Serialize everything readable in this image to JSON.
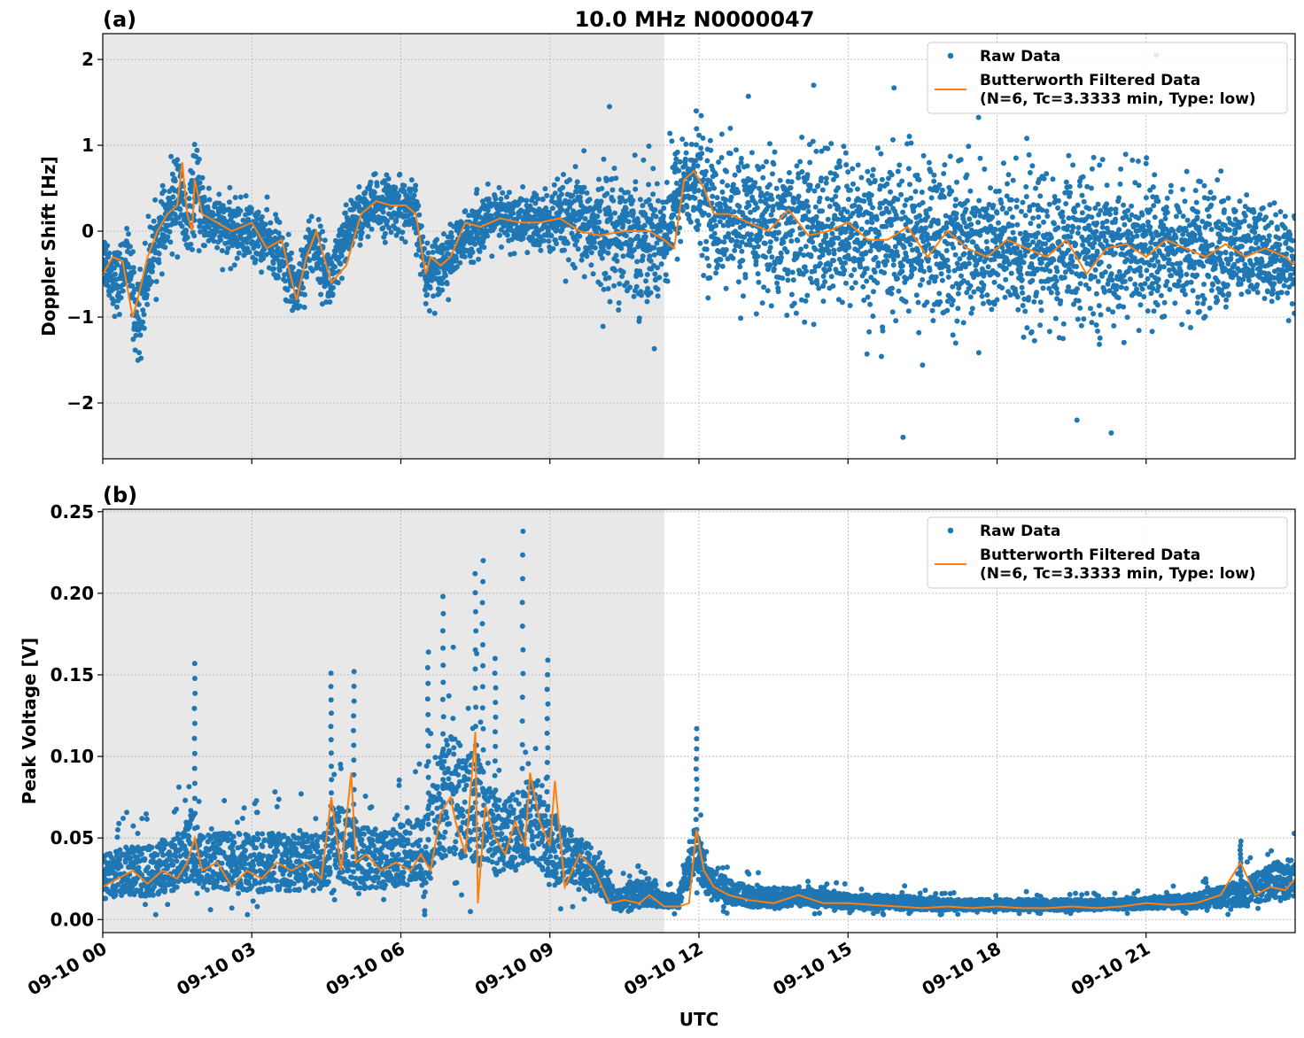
{
  "chart_data": [
    {
      "type": "scatter",
      "panel_label": "(a)",
      "title": "10.0 MHz N0000047",
      "ylabel": "Doppler Shift [Hz]",
      "xlabel": "",
      "xlim_hours": [
        0,
        24
      ],
      "ylim": [
        -2.65,
        2.3
      ],
      "yticks": [
        -2,
        -1,
        0,
        1,
        2
      ],
      "ytick_labels": [
        "−2",
        "−1",
        "0",
        "1",
        "2"
      ],
      "grid": true,
      "legend_position": "top-right",
      "shaded_region_hours": [
        0,
        11.3
      ],
      "series": [
        {
          "name": "Raw Data",
          "style": "points",
          "color": "#1f77b4",
          "x_hours": [
            0,
            0.3,
            0.5,
            0.7,
            1.0,
            1.3,
            1.5,
            1.7,
            1.85,
            2.0,
            2.5,
            3.0,
            3.5,
            3.9,
            4.2,
            4.6,
            5.0,
            5.5,
            6.0,
            6.3,
            6.5,
            6.7,
            7.0,
            7.5,
            8.0,
            8.5,
            9.0,
            9.5,
            10.0,
            10.5,
            11.0,
            11.3,
            11.7,
            12.0,
            12.3,
            13.0,
            14.0,
            15.0,
            16.0,
            17.0,
            18.0,
            19.0,
            20.0,
            21.0,
            22.0,
            23.0,
            24.0
          ],
          "y_center": [
            -0.3,
            -0.6,
            -0.3,
            -1.1,
            -0.2,
            0.1,
            0.5,
            0.0,
            0.5,
            0.2,
            0.0,
            0.0,
            -0.2,
            -0.7,
            -0.1,
            -0.6,
            0.1,
            0.3,
            0.3,
            0.2,
            -0.5,
            -0.4,
            -0.3,
            0.05,
            0.15,
            0.1,
            0.1,
            0.1,
            0.0,
            0.0,
            -0.1,
            0.0,
            0.6,
            0.5,
            0.2,
            0.1,
            0.0,
            0.0,
            -0.1,
            -0.1,
            -0.2,
            -0.25,
            -0.2,
            -0.2,
            -0.2,
            -0.25,
            -0.3
          ],
          "y_spread": [
            0.3,
            0.35,
            0.3,
            0.5,
            0.35,
            0.35,
            0.5,
            0.35,
            0.45,
            0.35,
            0.3,
            0.3,
            0.3,
            0.35,
            0.3,
            0.35,
            0.3,
            0.3,
            0.3,
            0.3,
            0.3,
            0.3,
            0.3,
            0.3,
            0.3,
            0.3,
            0.35,
            0.45,
            0.6,
            0.65,
            0.7,
            0.7,
            0.5,
            0.6,
            0.7,
            0.75,
            0.8,
            0.8,
            0.85,
            0.85,
            0.8,
            0.8,
            0.75,
            0.7,
            0.65,
            0.55,
            0.45
          ],
          "notable_points": [
            [
              10.2,
              1.45
            ],
            [
              11.95,
              1.4
            ],
            [
              14.3,
              1.7
            ],
            [
              16.1,
              -2.4
            ],
            [
              20.3,
              -2.35
            ],
            [
              19.6,
              -2.2
            ],
            [
              21.2,
              2.05
            ],
            [
              17.7,
              1.75
            ]
          ]
        },
        {
          "name": "Butterworth Filtered Data\n(N=6, Tc=3.3333 min, Type: low)",
          "style": "line",
          "color": "#ff7f0e",
          "x_hours": [
            0,
            0.2,
            0.4,
            0.6,
            0.7,
            0.9,
            1.1,
            1.3,
            1.5,
            1.6,
            1.7,
            1.8,
            1.85,
            2.0,
            2.3,
            2.6,
            3.0,
            3.3,
            3.6,
            3.9,
            4.1,
            4.3,
            4.6,
            4.9,
            5.2,
            5.5,
            5.8,
            6.1,
            6.3,
            6.5,
            6.6,
            6.8,
            7.0,
            7.3,
            7.6,
            8.0,
            8.4,
            8.8,
            9.2,
            9.6,
            10.0,
            10.5,
            11.0,
            11.3,
            11.5,
            11.7,
            11.9,
            12.1,
            12.3,
            12.6,
            13.0,
            13.4,
            13.8,
            14.2,
            14.6,
            15.0,
            15.4,
            15.8,
            16.2,
            16.6,
            17.0,
            17.4,
            17.8,
            18.2,
            18.6,
            19.0,
            19.4,
            19.8,
            20.2,
            20.6,
            21.0,
            21.4,
            21.8,
            22.2,
            22.6,
            23.0,
            23.4,
            23.8,
            24.0
          ],
          "y": [
            -0.5,
            -0.3,
            -0.35,
            -1.0,
            -0.8,
            -0.3,
            0.0,
            0.2,
            0.3,
            0.8,
            0.2,
            0.0,
            0.6,
            0.2,
            0.1,
            0.0,
            0.1,
            -0.2,
            -0.1,
            -0.8,
            -0.3,
            0.0,
            -0.6,
            -0.4,
            0.2,
            0.35,
            0.3,
            0.3,
            0.2,
            -0.5,
            -0.3,
            -0.4,
            -0.3,
            0.1,
            0.05,
            0.15,
            0.1,
            0.1,
            0.15,
            0.0,
            -0.05,
            0.0,
            0.0,
            -0.1,
            -0.2,
            0.6,
            0.7,
            0.5,
            0.2,
            0.2,
            0.1,
            0.0,
            0.25,
            -0.05,
            0.0,
            0.1,
            -0.1,
            -0.1,
            0.05,
            -0.3,
            0.0,
            -0.2,
            -0.3,
            -0.1,
            -0.2,
            -0.3,
            -0.1,
            -0.5,
            -0.2,
            -0.15,
            -0.3,
            -0.1,
            -0.2,
            -0.3,
            -0.15,
            -0.3,
            -0.2,
            -0.3,
            -0.4
          ]
        }
      ]
    },
    {
      "type": "scatter",
      "panel_label": "(b)",
      "title": "",
      "ylabel": "Peak Voltage [V]",
      "xlabel": "UTC",
      "xlim_hours": [
        0,
        24
      ],
      "xticks_hours": [
        0,
        3,
        6,
        9,
        12,
        15,
        18,
        21
      ],
      "xtick_labels": [
        "09-10 00",
        "09-10 03",
        "09-10 06",
        "09-10 09",
        "09-10 12",
        "09-10 15",
        "09-10 18",
        "09-10 21"
      ],
      "ylim": [
        -0.008,
        0.2515
      ],
      "yticks": [
        0.0,
        0.05,
        0.1,
        0.15,
        0.2,
        0.25
      ],
      "ytick_labels": [
        "0.00",
        "0.05",
        "0.10",
        "0.15",
        "0.20",
        "0.25"
      ],
      "grid": true,
      "legend_position": "top-right",
      "shaded_region_hours": [
        0,
        11.3
      ],
      "series": [
        {
          "name": "Raw Data",
          "style": "points",
          "color": "#1f77b4",
          "x_hours": [
            0,
            0.5,
            1.0,
            1.5,
            1.8,
            2.0,
            2.5,
            3.0,
            3.5,
            4.0,
            4.5,
            4.6,
            5.0,
            5.5,
            6.0,
            6.5,
            6.8,
            7.0,
            7.3,
            7.5,
            7.7,
            8.0,
            8.5,
            8.8,
            9.0,
            9.5,
            10.0,
            10.3,
            10.6,
            11.0,
            11.3,
            11.6,
            11.9,
            12.2,
            12.6,
            13.0,
            14.0,
            15.0,
            16.0,
            17.0,
            18.0,
            19.0,
            20.0,
            21.0,
            22.0,
            23.0,
            23.5,
            24.0
          ],
          "y_center": [
            0.022,
            0.025,
            0.025,
            0.03,
            0.04,
            0.03,
            0.03,
            0.03,
            0.03,
            0.03,
            0.03,
            0.045,
            0.035,
            0.03,
            0.035,
            0.035,
            0.06,
            0.065,
            0.06,
            0.06,
            0.05,
            0.04,
            0.05,
            0.05,
            0.04,
            0.03,
            0.025,
            0.01,
            0.012,
            0.015,
            0.01,
            0.01,
            0.04,
            0.02,
            0.015,
            0.012,
            0.012,
            0.01,
            0.009,
            0.008,
            0.008,
            0.008,
            0.008,
            0.009,
            0.01,
            0.014,
            0.02,
            0.022
          ],
          "y_spread": [
            0.012,
            0.014,
            0.014,
            0.016,
            0.02,
            0.016,
            0.016,
            0.016,
            0.016,
            0.016,
            0.016,
            0.02,
            0.02,
            0.016,
            0.018,
            0.02,
            0.03,
            0.035,
            0.03,
            0.035,
            0.025,
            0.02,
            0.025,
            0.025,
            0.02,
            0.015,
            0.012,
            0.005,
            0.007,
            0.008,
            0.004,
            0.004,
            0.015,
            0.008,
            0.007,
            0.006,
            0.005,
            0.004,
            0.004,
            0.003,
            0.003,
            0.003,
            0.003,
            0.003,
            0.004,
            0.007,
            0.01,
            0.011
          ],
          "notable_points": [
            [
              1.85,
              0.157
            ],
            [
              4.6,
              0.151
            ],
            [
              5.05,
              0.152
            ],
            [
              6.55,
              0.164
            ],
            [
              6.85,
              0.198
            ],
            [
              7.5,
              0.212
            ],
            [
              7.65,
              0.22
            ],
            [
              8.45,
              0.238
            ],
            [
              8.95,
              0.159
            ],
            [
              11.95,
              0.117
            ],
            [
              7.9,
              0.16
            ],
            [
              22.9,
              0.048
            ]
          ]
        },
        {
          "name": "Butterworth Filtered Data\n(N=6, Tc=3.3333 min, Type: low)",
          "style": "line",
          "color": "#ff7f0e",
          "x_hours": [
            0,
            0.3,
            0.6,
            0.9,
            1.2,
            1.5,
            1.7,
            1.85,
            2.0,
            2.3,
            2.6,
            2.9,
            3.2,
            3.5,
            3.8,
            4.1,
            4.4,
            4.6,
            4.8,
            5.0,
            5.1,
            5.3,
            5.6,
            5.9,
            6.2,
            6.4,
            6.6,
            6.8,
            7.0,
            7.1,
            7.3,
            7.5,
            7.55,
            7.7,
            7.9,
            8.1,
            8.3,
            8.5,
            8.6,
            8.8,
            9.0,
            9.1,
            9.3,
            9.6,
            9.9,
            10.2,
            10.5,
            10.8,
            11.0,
            11.3,
            11.6,
            11.8,
            11.95,
            12.1,
            12.3,
            12.6,
            13.0,
            13.5,
            14.0,
            14.5,
            15.0,
            15.5,
            16.0,
            16.5,
            17.0,
            17.5,
            18.0,
            18.5,
            19.0,
            19.5,
            20.0,
            20.5,
            21.0,
            21.5,
            22.0,
            22.5,
            22.9,
            23.2,
            23.5,
            23.8,
            24.0
          ],
          "y": [
            0.02,
            0.025,
            0.03,
            0.022,
            0.03,
            0.025,
            0.035,
            0.05,
            0.03,
            0.035,
            0.02,
            0.03,
            0.025,
            0.035,
            0.03,
            0.035,
            0.025,
            0.075,
            0.03,
            0.09,
            0.035,
            0.04,
            0.03,
            0.035,
            0.03,
            0.04,
            0.03,
            0.065,
            0.075,
            0.06,
            0.04,
            0.115,
            0.01,
            0.07,
            0.05,
            0.04,
            0.06,
            0.045,
            0.09,
            0.06,
            0.045,
            0.085,
            0.02,
            0.04,
            0.03,
            0.01,
            0.012,
            0.01,
            0.015,
            0.008,
            0.008,
            0.01,
            0.055,
            0.03,
            0.02,
            0.015,
            0.012,
            0.01,
            0.015,
            0.01,
            0.01,
            0.009,
            0.008,
            0.007,
            0.008,
            0.007,
            0.008,
            0.007,
            0.007,
            0.008,
            0.007,
            0.008,
            0.01,
            0.009,
            0.01,
            0.015,
            0.035,
            0.015,
            0.02,
            0.018,
            0.025
          ]
        }
      ]
    }
  ]
}
